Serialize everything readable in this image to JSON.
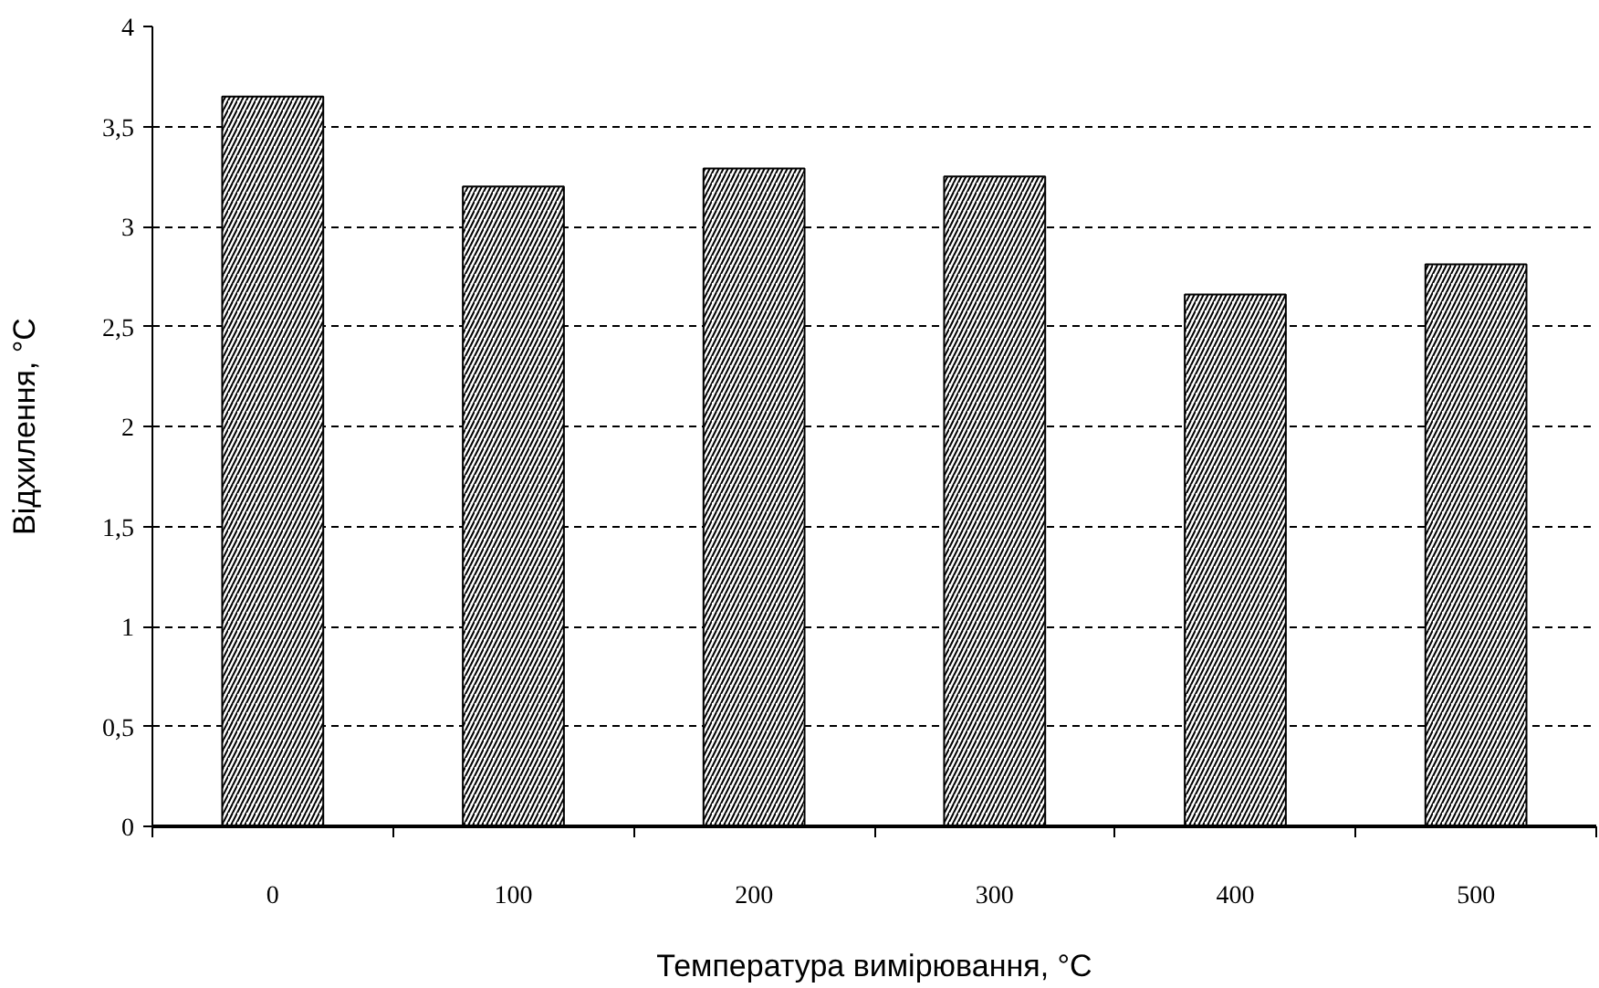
{
  "chart_data": {
    "type": "bar",
    "xlabel": "Температура вимірювання, °C",
    "ylabel": "Відхилення, °C",
    "categories": [
      "0",
      "100",
      "200",
      "300",
      "400",
      "500"
    ],
    "values": [
      3.65,
      3.2,
      3.29,
      3.25,
      2.66,
      2.81
    ],
    "color": "#ffffff",
    "ylim": [
      0,
      4
    ],
    "yticks": [
      0,
      {
        "value": 0.5,
        "label": "0,5"
      },
      1,
      {
        "value": 1.5,
        "label": "1,5"
      },
      2,
      {
        "value": 2.5,
        "label": "2,5"
      },
      3,
      {
        "value": 3.5,
        "label": "3,5"
      },
      4
    ],
    "grid": "y"
  }
}
